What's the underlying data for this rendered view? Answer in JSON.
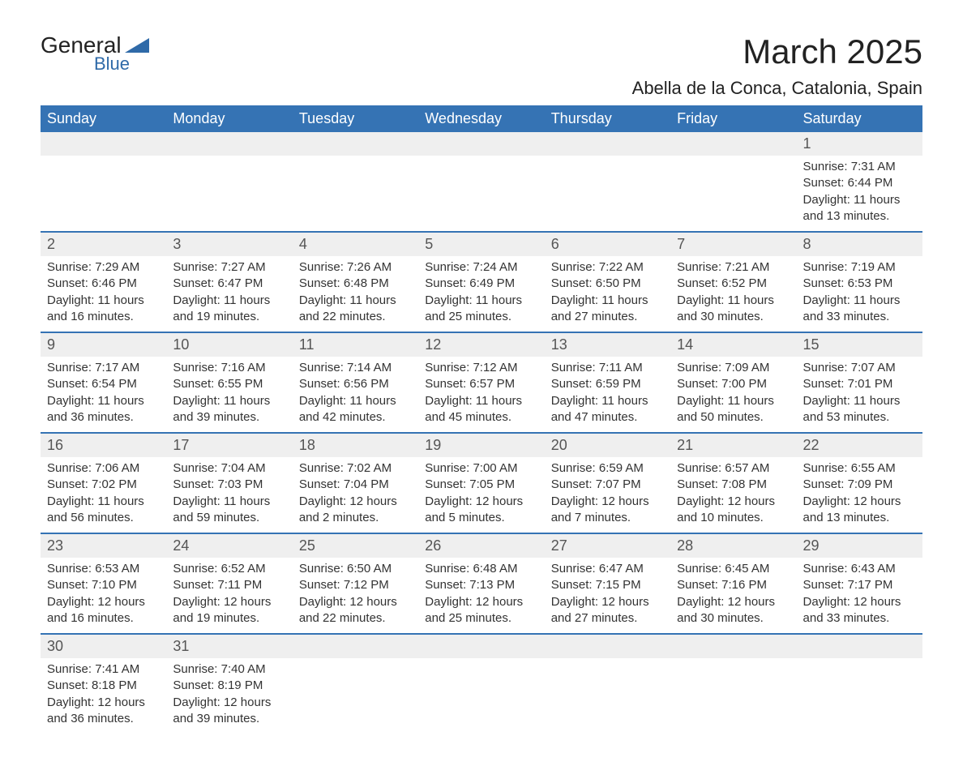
{
  "logo": {
    "text_main": "General",
    "text_sub": "Blue",
    "triangle_color": "#2f6aa8"
  },
  "title": "March 2025",
  "location": "Abella de la Conca, Catalonia, Spain",
  "header_bg": "#3573b4",
  "header_text_color": "#ffffff",
  "daynum_bg": "#efefef",
  "text_color": "#333333",
  "day_headers": [
    "Sunday",
    "Monday",
    "Tuesday",
    "Wednesday",
    "Thursday",
    "Friday",
    "Saturday"
  ],
  "weeks": [
    {
      "nums": [
        "",
        "",
        "",
        "",
        "",
        "",
        "1"
      ],
      "data": [
        null,
        null,
        null,
        null,
        null,
        null,
        {
          "sunrise": "Sunrise: 7:31 AM",
          "sunset": "Sunset: 6:44 PM",
          "daylight1": "Daylight: 11 hours",
          "daylight2": "and 13 minutes."
        }
      ]
    },
    {
      "nums": [
        "2",
        "3",
        "4",
        "5",
        "6",
        "7",
        "8"
      ],
      "data": [
        {
          "sunrise": "Sunrise: 7:29 AM",
          "sunset": "Sunset: 6:46 PM",
          "daylight1": "Daylight: 11 hours",
          "daylight2": "and 16 minutes."
        },
        {
          "sunrise": "Sunrise: 7:27 AM",
          "sunset": "Sunset: 6:47 PM",
          "daylight1": "Daylight: 11 hours",
          "daylight2": "and 19 minutes."
        },
        {
          "sunrise": "Sunrise: 7:26 AM",
          "sunset": "Sunset: 6:48 PM",
          "daylight1": "Daylight: 11 hours",
          "daylight2": "and 22 minutes."
        },
        {
          "sunrise": "Sunrise: 7:24 AM",
          "sunset": "Sunset: 6:49 PM",
          "daylight1": "Daylight: 11 hours",
          "daylight2": "and 25 minutes."
        },
        {
          "sunrise": "Sunrise: 7:22 AM",
          "sunset": "Sunset: 6:50 PM",
          "daylight1": "Daylight: 11 hours",
          "daylight2": "and 27 minutes."
        },
        {
          "sunrise": "Sunrise: 7:21 AM",
          "sunset": "Sunset: 6:52 PM",
          "daylight1": "Daylight: 11 hours",
          "daylight2": "and 30 minutes."
        },
        {
          "sunrise": "Sunrise: 7:19 AM",
          "sunset": "Sunset: 6:53 PM",
          "daylight1": "Daylight: 11 hours",
          "daylight2": "and 33 minutes."
        }
      ]
    },
    {
      "nums": [
        "9",
        "10",
        "11",
        "12",
        "13",
        "14",
        "15"
      ],
      "data": [
        {
          "sunrise": "Sunrise: 7:17 AM",
          "sunset": "Sunset: 6:54 PM",
          "daylight1": "Daylight: 11 hours",
          "daylight2": "and 36 minutes."
        },
        {
          "sunrise": "Sunrise: 7:16 AM",
          "sunset": "Sunset: 6:55 PM",
          "daylight1": "Daylight: 11 hours",
          "daylight2": "and 39 minutes."
        },
        {
          "sunrise": "Sunrise: 7:14 AM",
          "sunset": "Sunset: 6:56 PM",
          "daylight1": "Daylight: 11 hours",
          "daylight2": "and 42 minutes."
        },
        {
          "sunrise": "Sunrise: 7:12 AM",
          "sunset": "Sunset: 6:57 PM",
          "daylight1": "Daylight: 11 hours",
          "daylight2": "and 45 minutes."
        },
        {
          "sunrise": "Sunrise: 7:11 AM",
          "sunset": "Sunset: 6:59 PM",
          "daylight1": "Daylight: 11 hours",
          "daylight2": "and 47 minutes."
        },
        {
          "sunrise": "Sunrise: 7:09 AM",
          "sunset": "Sunset: 7:00 PM",
          "daylight1": "Daylight: 11 hours",
          "daylight2": "and 50 minutes."
        },
        {
          "sunrise": "Sunrise: 7:07 AM",
          "sunset": "Sunset: 7:01 PM",
          "daylight1": "Daylight: 11 hours",
          "daylight2": "and 53 minutes."
        }
      ]
    },
    {
      "nums": [
        "16",
        "17",
        "18",
        "19",
        "20",
        "21",
        "22"
      ],
      "data": [
        {
          "sunrise": "Sunrise: 7:06 AM",
          "sunset": "Sunset: 7:02 PM",
          "daylight1": "Daylight: 11 hours",
          "daylight2": "and 56 minutes."
        },
        {
          "sunrise": "Sunrise: 7:04 AM",
          "sunset": "Sunset: 7:03 PM",
          "daylight1": "Daylight: 11 hours",
          "daylight2": "and 59 minutes."
        },
        {
          "sunrise": "Sunrise: 7:02 AM",
          "sunset": "Sunset: 7:04 PM",
          "daylight1": "Daylight: 12 hours",
          "daylight2": "and 2 minutes."
        },
        {
          "sunrise": "Sunrise: 7:00 AM",
          "sunset": "Sunset: 7:05 PM",
          "daylight1": "Daylight: 12 hours",
          "daylight2": "and 5 minutes."
        },
        {
          "sunrise": "Sunrise: 6:59 AM",
          "sunset": "Sunset: 7:07 PM",
          "daylight1": "Daylight: 12 hours",
          "daylight2": "and 7 minutes."
        },
        {
          "sunrise": "Sunrise: 6:57 AM",
          "sunset": "Sunset: 7:08 PM",
          "daylight1": "Daylight: 12 hours",
          "daylight2": "and 10 minutes."
        },
        {
          "sunrise": "Sunrise: 6:55 AM",
          "sunset": "Sunset: 7:09 PM",
          "daylight1": "Daylight: 12 hours",
          "daylight2": "and 13 minutes."
        }
      ]
    },
    {
      "nums": [
        "23",
        "24",
        "25",
        "26",
        "27",
        "28",
        "29"
      ],
      "data": [
        {
          "sunrise": "Sunrise: 6:53 AM",
          "sunset": "Sunset: 7:10 PM",
          "daylight1": "Daylight: 12 hours",
          "daylight2": "and 16 minutes."
        },
        {
          "sunrise": "Sunrise: 6:52 AM",
          "sunset": "Sunset: 7:11 PM",
          "daylight1": "Daylight: 12 hours",
          "daylight2": "and 19 minutes."
        },
        {
          "sunrise": "Sunrise: 6:50 AM",
          "sunset": "Sunset: 7:12 PM",
          "daylight1": "Daylight: 12 hours",
          "daylight2": "and 22 minutes."
        },
        {
          "sunrise": "Sunrise: 6:48 AM",
          "sunset": "Sunset: 7:13 PM",
          "daylight1": "Daylight: 12 hours",
          "daylight2": "and 25 minutes."
        },
        {
          "sunrise": "Sunrise: 6:47 AM",
          "sunset": "Sunset: 7:15 PM",
          "daylight1": "Daylight: 12 hours",
          "daylight2": "and 27 minutes."
        },
        {
          "sunrise": "Sunrise: 6:45 AM",
          "sunset": "Sunset: 7:16 PM",
          "daylight1": "Daylight: 12 hours",
          "daylight2": "and 30 minutes."
        },
        {
          "sunrise": "Sunrise: 6:43 AM",
          "sunset": "Sunset: 7:17 PM",
          "daylight1": "Daylight: 12 hours",
          "daylight2": "and 33 minutes."
        }
      ]
    },
    {
      "nums": [
        "30",
        "31",
        "",
        "",
        "",
        "",
        ""
      ],
      "data": [
        {
          "sunrise": "Sunrise: 7:41 AM",
          "sunset": "Sunset: 8:18 PM",
          "daylight1": "Daylight: 12 hours",
          "daylight2": "and 36 minutes."
        },
        {
          "sunrise": "Sunrise: 7:40 AM",
          "sunset": "Sunset: 8:19 PM",
          "daylight1": "Daylight: 12 hours",
          "daylight2": "and 39 minutes."
        },
        null,
        null,
        null,
        null,
        null
      ]
    }
  ]
}
